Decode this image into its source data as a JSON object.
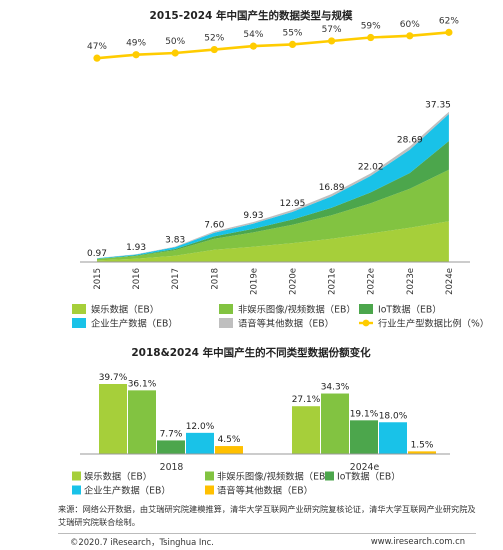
{
  "chart_data": [
    {
      "type": "area",
      "title": "2015-2024 年中国产生的数据类型与规模",
      "x": [
        "2015",
        "2016",
        "2017",
        "2018",
        "2019e",
        "2020e",
        "2021e",
        "2022e",
        "2023e",
        "2024e"
      ],
      "totals": [
        0.97,
        1.93,
        3.83,
        7.6,
        9.93,
        12.95,
        16.89,
        22.02,
        28.69,
        37.35
      ],
      "totals_text": [
        "0.97",
        "1.93",
        "3.83",
        "7.60",
        "9.93",
        "12.95",
        "16.89",
        "22.02",
        "28.69",
        "37.35"
      ],
      "series": [
        {
          "name": "娱乐数据（EB）",
          "color": "#a6cf3a",
          "values": [
            0.4,
            0.79,
            1.56,
            3.02,
            3.8,
            4.7,
            5.8,
            7.1,
            8.5,
            10.12
          ]
        },
        {
          "name": "非娱乐图像/视频数据（EB）",
          "color": "#82c341",
          "values": [
            0.36,
            0.71,
            1.4,
            2.74,
            3.55,
            4.55,
            5.8,
            7.5,
            9.7,
            12.81
          ]
        },
        {
          "name": "IoT数据（EB）",
          "color": "#4ca64c",
          "values": [
            0.07,
            0.14,
            0.28,
            0.59,
            0.9,
            1.3,
            1.9,
            2.7,
            3.9,
            7.13
          ]
        },
        {
          "name": "企业生产数据（EB）",
          "color": "#19c2e8",
          "values": [
            0.1,
            0.22,
            0.45,
            0.91,
            1.3,
            1.9,
            2.8,
            4.1,
            5.8,
            6.72
          ]
        },
        {
          "name": "语音等其他数据（EB）",
          "color": "#bfbfbf",
          "values": [
            0.04,
            0.07,
            0.14,
            0.34,
            0.38,
            0.5,
            0.59,
            0.62,
            0.79,
            0.57
          ]
        }
      ],
      "line_series": {
        "name": "行业生产型数据比例（%）",
        "color": "#ffcc00",
        "values": [
          47,
          49,
          50,
          52,
          54,
          55,
          57,
          59,
          60,
          62
        ],
        "labels": [
          "47%",
          "49%",
          "50%",
          "52%",
          "54%",
          "55%",
          "57%",
          "59%",
          "60%",
          "62%"
        ]
      },
      "legend": [
        "娱乐数据（EB）",
        "非娱乐图像/视频数据（EB）",
        "IoT数据（EB）",
        "企业生产数据（EB）",
        "语音等其他数据（EB）",
        "行业生产型数据比例（%）"
      ],
      "ylim": [
        0,
        40
      ],
      "line_ylim": [
        0,
        100
      ],
      "grid": false
    },
    {
      "type": "bar",
      "title": "2018&2024 年中国产生的不同类型数据份额变化",
      "categories": [
        "2018",
        "2024e"
      ],
      "series": [
        {
          "name": "娱乐数据（EB）",
          "color": "#a6cf3a",
          "values": [
            39.7,
            27.1
          ],
          "labels": [
            "39.7%",
            "27.1%"
          ]
        },
        {
          "name": "非娱乐图像/视频数据（EB）",
          "color": "#82c341",
          "values": [
            36.1,
            34.3
          ],
          "labels": [
            "36.1%",
            "34.3%"
          ]
        },
        {
          "name": "IoT数据（EB）",
          "color": "#4ca64c",
          "values": [
            7.7,
            19.1
          ],
          "labels": [
            "7.7%",
            "19.1%"
          ]
        },
        {
          "name": "企业生产数据（EB）",
          "color": "#19c2e8",
          "values": [
            12.0,
            18.0
          ],
          "labels": [
            "12.0%",
            "18.0%"
          ]
        },
        {
          "name": "语音等其他数据（EB）",
          "color": "#ffc000",
          "values": [
            4.5,
            1.5
          ],
          "labels": [
            "4.5%",
            "1.5%"
          ]
        }
      ],
      "legend": [
        "娱乐数据（EB）",
        "非娱乐图像/视频数据（EB）",
        "IoT数据（EB）",
        "企业生产数据（EB）",
        "语音等其他数据（EB）"
      ],
      "ylim": [
        0,
        45
      ],
      "grid": false
    }
  ],
  "source_text": "来源：网络公开数据，由艾瑞研究院建模推算，清华大学互联网产业研究院复核论证，清华大学互联网产业研究院及艾瑞研究院联合绘制。",
  "footer": {
    "left": "©2020.7 iResearch，Tsinghua Inc.",
    "right": "www.iresearch.com.cn"
  }
}
